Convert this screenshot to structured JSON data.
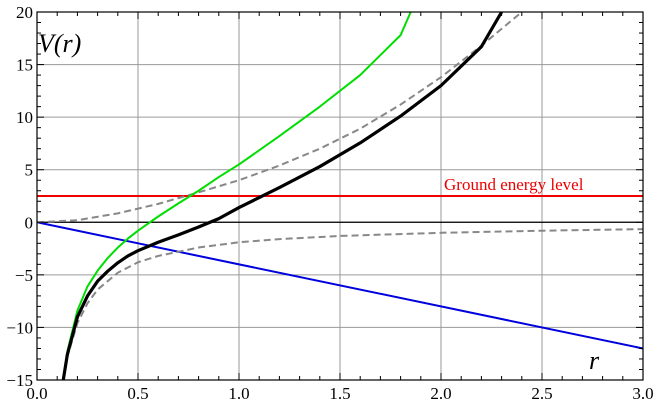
{
  "chart_data": {
    "type": "line",
    "title": "",
    "xlabel": "r",
    "ylabel": "V(r)",
    "xlim": [
      0,
      3
    ],
    "ylim": [
      -15,
      20
    ],
    "x_ticks": [
      0,
      0.5,
      1,
      1.5,
      2,
      2.5,
      3
    ],
    "x_tick_labels": [
      "0.0",
      "0.5",
      "1.0",
      "1.5",
      "2.0",
      "2.5",
      "3.0"
    ],
    "y_ticks": [
      -15,
      -10,
      -5,
      0,
      5,
      10,
      15,
      20
    ],
    "y_tick_labels": [
      "−15",
      "−10",
      "−5",
      "0",
      "5",
      "10",
      "15",
      "20"
    ],
    "grid": true,
    "legend": "none",
    "series": [
      {
        "key": "total",
        "color": "#000000",
        "style": "solid-thick",
        "x": [
          0.13,
          0.15,
          0.2,
          0.25,
          0.3,
          0.35,
          0.4,
          0.45,
          0.5,
          0.6,
          0.7,
          0.8,
          0.9,
          1.0,
          1.1,
          1.2,
          1.4,
          1.6,
          1.8,
          2.0,
          2.2,
          2.3
        ],
        "y": [
          -15.0,
          -12.6,
          -9.0,
          -7.0,
          -5.6,
          -4.65,
          -3.85,
          -3.2,
          -2.7,
          -1.9,
          -1.2,
          -0.45,
          0.35,
          1.4,
          2.35,
          3.3,
          5.3,
          7.55,
          10.1,
          13.0,
          16.7,
          20.0
        ]
      },
      {
        "key": "green",
        "color": "#00dd00",
        "style": "solid",
        "x": [
          0.13,
          0.15,
          0.2,
          0.25,
          0.3,
          0.35,
          0.4,
          0.45,
          0.5,
          0.6,
          0.7,
          0.8,
          0.9,
          1.0,
          1.2,
          1.4,
          1.6,
          1.8,
          1.85
        ],
        "y": [
          -15.0,
          -12.3,
          -8.4,
          -6.1,
          -4.6,
          -3.4,
          -2.4,
          -1.55,
          -0.8,
          0.55,
          1.8,
          3.0,
          4.3,
          5.5,
          8.2,
          11.0,
          14.0,
          17.8,
          20.0
        ]
      },
      {
        "key": "blue",
        "color": "#0000dd",
        "style": "solid",
        "x": [
          0,
          3
        ],
        "y": [
          0,
          -12
        ]
      },
      {
        "key": "dashed-upper",
        "color": "#888888",
        "style": "dashed",
        "x": [
          0,
          0.2,
          0.4,
          0.6,
          0.8,
          1.0,
          1.2,
          1.4,
          1.6,
          1.8,
          2.0,
          2.2,
          2.4
        ],
        "y": [
          0,
          0.2,
          0.85,
          1.75,
          2.85,
          4.0,
          5.4,
          7.0,
          8.9,
          11.2,
          13.8,
          16.8,
          20.0
        ]
      },
      {
        "key": "dashed-lower",
        "color": "#888888",
        "style": "dashed",
        "x": [
          0.13,
          0.15,
          0.2,
          0.25,
          0.3,
          0.4,
          0.5,
          0.6,
          0.8,
          1.0,
          1.2,
          1.5,
          2.0,
          2.5,
          3.0
        ],
        "y": [
          -15.0,
          -12.8,
          -9.6,
          -7.7,
          -6.4,
          -4.8,
          -3.8,
          -3.2,
          -2.4,
          -1.9,
          -1.6,
          -1.3,
          -1.0,
          -0.8,
          -0.65
        ]
      }
    ],
    "hlines": [
      {
        "key": "zero",
        "y": 0,
        "color": "#000000"
      },
      {
        "key": "ground",
        "y": 2.5,
        "color": "#ee0000"
      }
    ],
    "annotations": [
      {
        "text": "Ground energy level",
        "x": 2.36,
        "y": 3.65,
        "color": "#ee0000"
      }
    ]
  }
}
